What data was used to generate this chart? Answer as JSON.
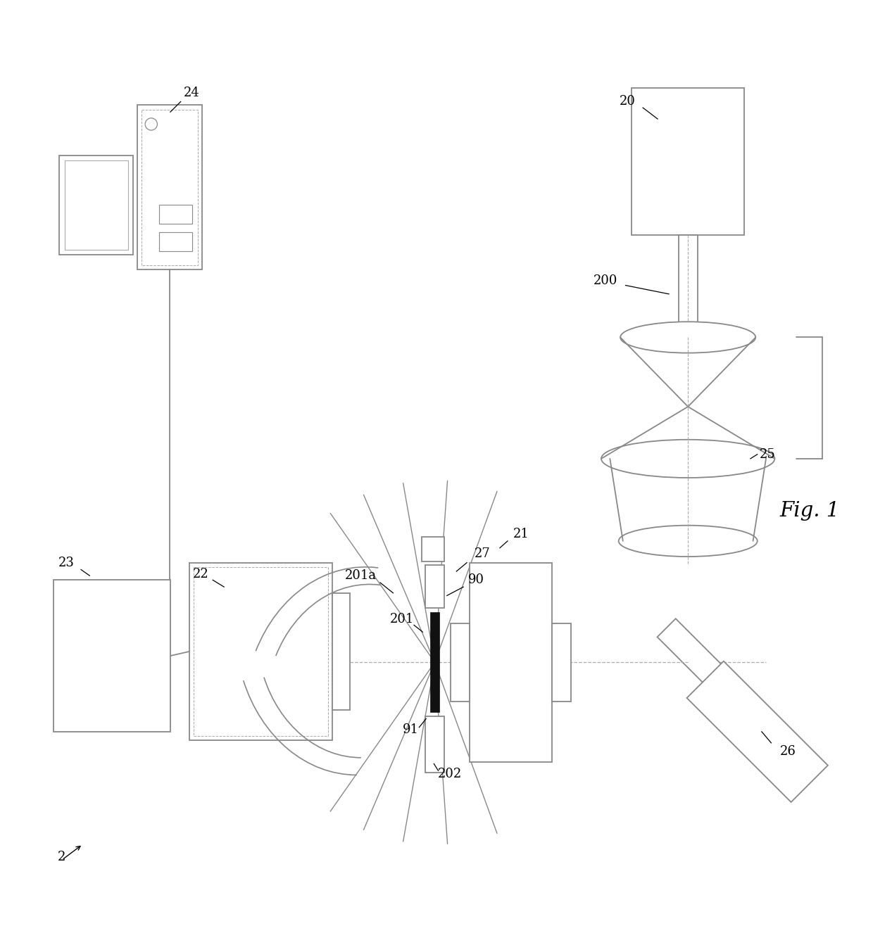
{
  "bg_color": "#ffffff",
  "lc": "#888888",
  "lc2": "#aaaaaa",
  "black": "#111111",
  "fig_label": "Fig. 1",
  "lw": 1.3,
  "lw_thin": 0.9,
  "figsize": [
    12.4,
    13.53
  ],
  "dpi": 100
}
